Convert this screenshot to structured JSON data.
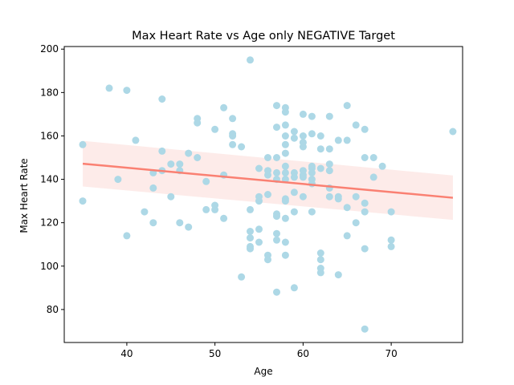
{
  "chart_data": {
    "type": "scatter",
    "title": "Max Heart Rate vs Age only NEGATIVE Target",
    "xlabel": "Age",
    "ylabel": "Max Heart Rate",
    "xlim": [
      32.9,
      78.1
    ],
    "ylim": [
      64.8,
      201.2
    ],
    "xticks": [
      40,
      50,
      60,
      70
    ],
    "yticks": [
      80,
      100,
      120,
      140,
      160,
      180,
      200
    ],
    "grid": false,
    "legend": "none",
    "colors": {
      "points": "#add8e6",
      "regression_line": "#fa8072",
      "confidence_band": "#fde8e5"
    },
    "regression": {
      "x": [
        35,
        77
      ],
      "y": [
        147.2,
        131.5
      ],
      "ci_upper": [
        157.7,
        141.8
      ],
      "ci_lower": [
        136.7,
        121.3
      ]
    },
    "points": [
      [
        35,
        156
      ],
      [
        35,
        130
      ],
      [
        38,
        182
      ],
      [
        39,
        140
      ],
      [
        40,
        181
      ],
      [
        40,
        114
      ],
      [
        41,
        158
      ],
      [
        42,
        125
      ],
      [
        43,
        143
      ],
      [
        43,
        136
      ],
      [
        43,
        120
      ],
      [
        44,
        177
      ],
      [
        44,
        153
      ],
      [
        44,
        144
      ],
      [
        45,
        147
      ],
      [
        45,
        132
      ],
      [
        46,
        147
      ],
      [
        46,
        144
      ],
      [
        46,
        120
      ],
      [
        47,
        152
      ],
      [
        47,
        118
      ],
      [
        48,
        168
      ],
      [
        48,
        166
      ],
      [
        48,
        150
      ],
      [
        49,
        139
      ],
      [
        49,
        126
      ],
      [
        50,
        163
      ],
      [
        50,
        128
      ],
      [
        50,
        126
      ],
      [
        51,
        173
      ],
      [
        51,
        142
      ],
      [
        51,
        122
      ],
      [
        52,
        168
      ],
      [
        52,
        161
      ],
      [
        52,
        160
      ],
      [
        52,
        156
      ],
      [
        53,
        155
      ],
      [
        53,
        95
      ],
      [
        54,
        195
      ],
      [
        54,
        126
      ],
      [
        54,
        116
      ],
      [
        54,
        113
      ],
      [
        54,
        109
      ],
      [
        54,
        108
      ],
      [
        55,
        145
      ],
      [
        55,
        132
      ],
      [
        55,
        130
      ],
      [
        55,
        117
      ],
      [
        55,
        111
      ],
      [
        56,
        150
      ],
      [
        56,
        144
      ],
      [
        56,
        142
      ],
      [
        56,
        133
      ],
      [
        56,
        105
      ],
      [
        56,
        103
      ],
      [
        57,
        174
      ],
      [
        57,
        164
      ],
      [
        57,
        150
      ],
      [
        57,
        143
      ],
      [
        57,
        140
      ],
      [
        57,
        124
      ],
      [
        57,
        123
      ],
      [
        57,
        115
      ],
      [
        57,
        112
      ],
      [
        57,
        88
      ],
      [
        58,
        173
      ],
      [
        58,
        171
      ],
      [
        58,
        165
      ],
      [
        58,
        160
      ],
      [
        58,
        156
      ],
      [
        58,
        152
      ],
      [
        58,
        146
      ],
      [
        58,
        143
      ],
      [
        58,
        140
      ],
      [
        58,
        131
      ],
      [
        58,
        130
      ],
      [
        58,
        122
      ],
      [
        58,
        111
      ],
      [
        58,
        105
      ],
      [
        59,
        162
      ],
      [
        59,
        159
      ],
      [
        59,
        143
      ],
      [
        59,
        141
      ],
      [
        59,
        134
      ],
      [
        59,
        125
      ],
      [
        59,
        90
      ],
      [
        60,
        170
      ],
      [
        60,
        160
      ],
      [
        60,
        157
      ],
      [
        60,
        155
      ],
      [
        60,
        144
      ],
      [
        60,
        142
      ],
      [
        60,
        141
      ],
      [
        60,
        132
      ],
      [
        61,
        169
      ],
      [
        61,
        161
      ],
      [
        61,
        146
      ],
      [
        61,
        145
      ],
      [
        61,
        143
      ],
      [
        61,
        140
      ],
      [
        61,
        138
      ],
      [
        61,
        125
      ],
      [
        62,
        160
      ],
      [
        62,
        154
      ],
      [
        62,
        145
      ],
      [
        62,
        106
      ],
      [
        62,
        103
      ],
      [
        62,
        99
      ],
      [
        62,
        97
      ],
      [
        63,
        169
      ],
      [
        63,
        154
      ],
      [
        63,
        147
      ],
      [
        63,
        144
      ],
      [
        63,
        136
      ],
      [
        63,
        132
      ],
      [
        64,
        158
      ],
      [
        64,
        132
      ],
      [
        64,
        131
      ],
      [
        64,
        96
      ],
      [
        65,
        174
      ],
      [
        65,
        158
      ],
      [
        65,
        127
      ],
      [
        65,
        114
      ],
      [
        66,
        165
      ],
      [
        66,
        132
      ],
      [
        66,
        120
      ],
      [
        67,
        163
      ],
      [
        67,
        150
      ],
      [
        67,
        129
      ],
      [
        67,
        125
      ],
      [
        67,
        108
      ],
      [
        67,
        71
      ],
      [
        68,
        150
      ],
      [
        68,
        141
      ],
      [
        69,
        146
      ],
      [
        70,
        125
      ],
      [
        70,
        112
      ],
      [
        70,
        109
      ],
      [
        77,
        162
      ]
    ]
  }
}
